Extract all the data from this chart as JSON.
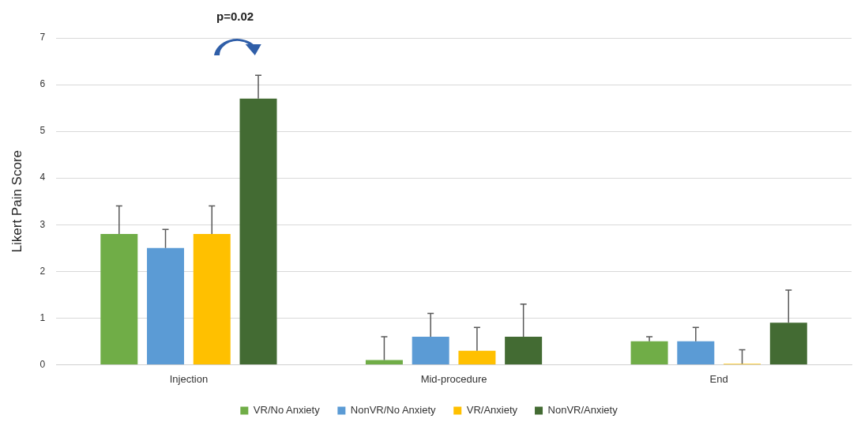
{
  "chart_data": {
    "type": "bar",
    "ylabel": "Likert Pain Score",
    "categories": [
      "Injection",
      "Mid-procedure",
      "End"
    ],
    "series": [
      {
        "name": "VR/No Anxiety",
        "color": "#70ad47",
        "values": [
          2.8,
          0.1,
          0.5
        ],
        "errors": [
          [
            2.8,
            3.4
          ],
          [
            0.1,
            0.6
          ],
          [
            0.5,
            0.6
          ]
        ]
      },
      {
        "name": "NonVR/No Anxiety",
        "color": "#5b9bd5",
        "values": [
          2.5,
          0.6,
          0.5
        ],
        "errors": [
          [
            2.5,
            2.9
          ],
          [
            0.6,
            1.1
          ],
          [
            0.5,
            0.8
          ]
        ]
      },
      {
        "name": "VR/Anxiety",
        "color": "#ffc000",
        "values": [
          2.8,
          0.3,
          0.02
        ],
        "errors": [
          [
            2.8,
            3.4
          ],
          [
            0.3,
            0.8
          ],
          [
            0.02,
            0.32
          ]
        ]
      },
      {
        "name": "NonVR/Anxiety",
        "color": "#436b33",
        "values": [
          5.7,
          0.6,
          0.9
        ],
        "errors": [
          [
            5.7,
            6.2
          ],
          [
            0.6,
            1.3
          ],
          [
            0.9,
            1.6
          ]
        ]
      }
    ],
    "ylim": [
      0,
      7
    ],
    "yticks": [
      0,
      1,
      2,
      3,
      4,
      5,
      6,
      7
    ],
    "grid": "y",
    "legend": "bottom",
    "annotations": [
      "p=0.02"
    ]
  }
}
